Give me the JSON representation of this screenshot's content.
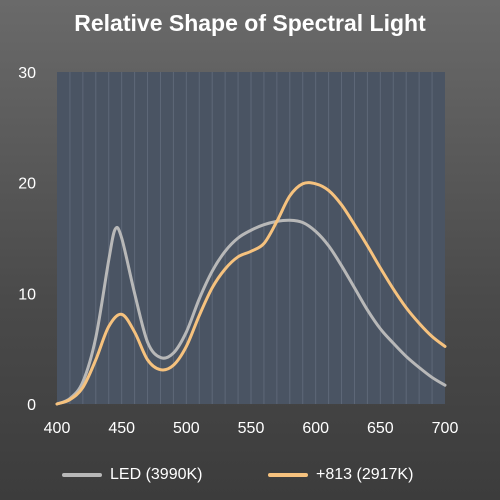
{
  "chart_data": {
    "type": "line",
    "title": "Relative Shape of Spectral Light",
    "xlabel": "",
    "ylabel": "",
    "xlim": [
      400,
      700
    ],
    "ylim": [
      0,
      30
    ],
    "x_ticks": [
      400,
      450,
      500,
      550,
      600,
      650,
      700
    ],
    "y_ticks": [
      0,
      10,
      20,
      30
    ],
    "grid": "vertical",
    "legend_position": "bottom",
    "series": [
      {
        "name": "LED (3990K)",
        "color": "#b8b8b8",
        "x": [
          400,
          410,
          420,
          430,
          440,
          445,
          450,
          460,
          470,
          480,
          490,
          500,
          510,
          520,
          530,
          540,
          550,
          560,
          570,
          580,
          590,
          600,
          610,
          620,
          630,
          640,
          650,
          660,
          670,
          680,
          690,
          700
        ],
        "y": [
          0,
          0.5,
          2,
          6,
          13,
          15.8,
          15,
          10,
          5.6,
          4.2,
          4.6,
          6.5,
          9.5,
          12,
          13.8,
          15,
          15.7,
          16.2,
          16.5,
          16.6,
          16.4,
          15.6,
          14.3,
          12.5,
          10.5,
          8.5,
          6.8,
          5.5,
          4.3,
          3.3,
          2.4,
          1.7
        ]
      },
      {
        "name": "+813 (2917K)",
        "color": "#f6c27e",
        "x": [
          400,
          410,
          420,
          430,
          440,
          450,
          460,
          470,
          480,
          490,
          500,
          510,
          520,
          530,
          540,
          550,
          560,
          570,
          580,
          590,
          600,
          610,
          620,
          630,
          640,
          650,
          660,
          670,
          680,
          690,
          700
        ],
        "y": [
          0,
          0.4,
          1.5,
          4,
          7,
          8.1,
          6.5,
          4,
          3.1,
          3.5,
          5.2,
          8,
          10.5,
          12.2,
          13.3,
          13.8,
          14.5,
          16.5,
          18.8,
          19.9,
          19.9,
          19.3,
          18,
          16.2,
          14.3,
          12.3,
          10.4,
          8.7,
          7.3,
          6.1,
          5.2
        ]
      }
    ]
  }
}
